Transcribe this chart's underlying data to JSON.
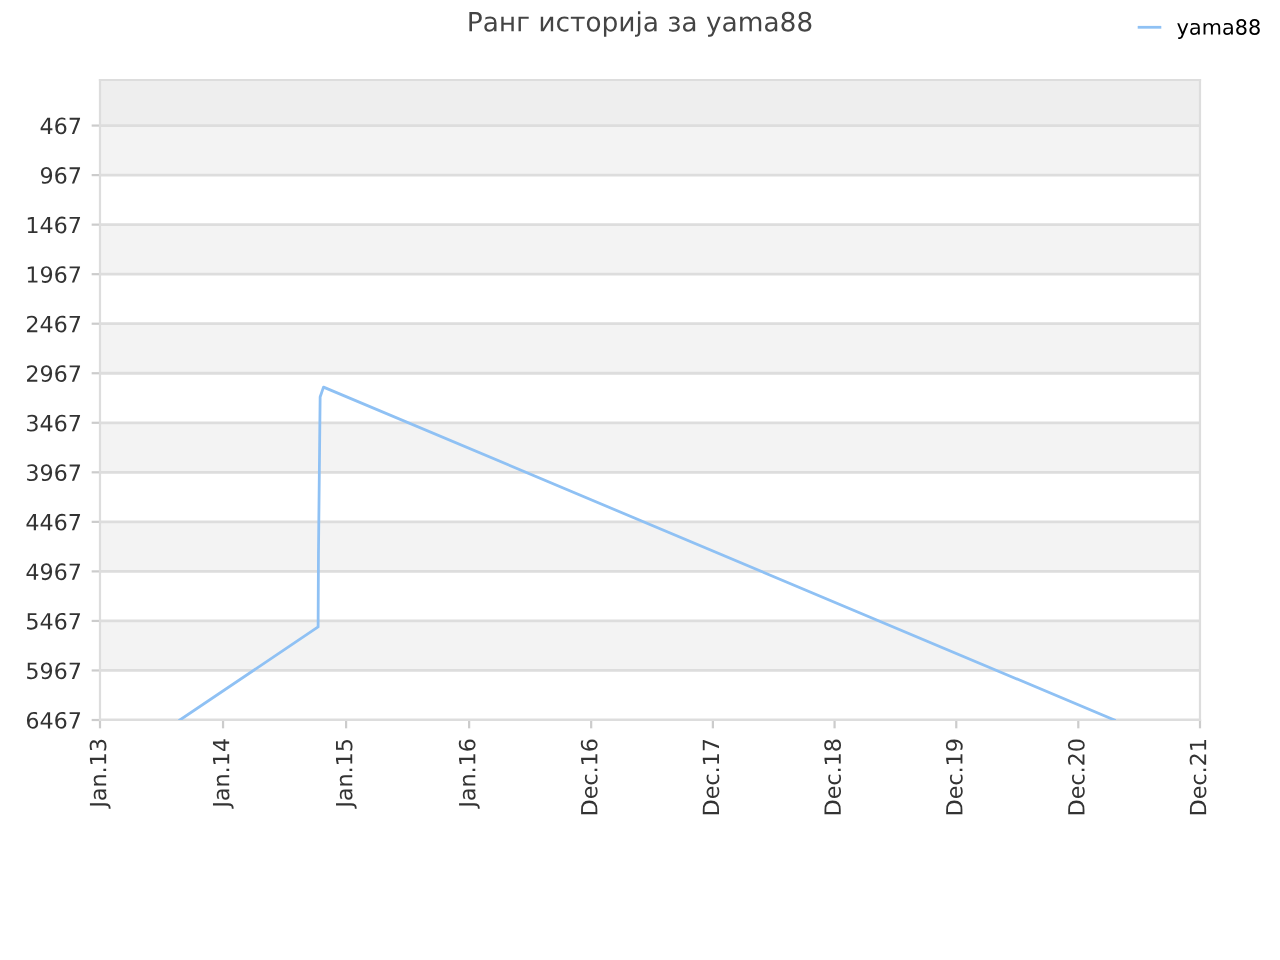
{
  "chart_data": {
    "type": "line",
    "title": "Ранг историја за yama88",
    "series": [
      {
        "name": "yama88",
        "color": "#8fc1f4",
        "x": [
          "2013-08-26",
          "2014-10-10",
          "2014-10-11",
          "2014-10-16",
          "2014-10-26",
          "2021-03-29"
        ],
        "values": [
          6467,
          5527,
          4807,
          3207,
          3107,
          6467
        ]
      }
    ],
    "xlim": [
      "2013-01-01",
      "2021-12-08"
    ],
    "xticks": [
      {
        "value": "2013-01-01",
        "label": "Jan.13"
      },
      {
        "value": "2014-01-01",
        "label": "Jan.14"
      },
      {
        "value": "2015-01-01",
        "label": "Jan.15"
      },
      {
        "value": "2016-01-01",
        "label": "Jan.16"
      },
      {
        "value": "2016-12-28",
        "label": "Dec.16"
      },
      {
        "value": "2017-12-24",
        "label": "Dec.17"
      },
      {
        "value": "2018-12-20",
        "label": "Dec.18"
      },
      {
        "value": "2019-12-16",
        "label": "Dec.19"
      },
      {
        "value": "2020-12-12",
        "label": "Dec.20"
      },
      {
        "value": "2021-12-08",
        "label": "Dec.21"
      }
    ],
    "ylim": [
      6467,
      7
    ],
    "yticks": [
      467,
      967,
      1467,
      1967,
      2467,
      2967,
      3467,
      3967,
      4467,
      4967,
      5467,
      5967,
      6467
    ],
    "bands": [
      {
        "axis": "y",
        "from": 467,
        "to": 7,
        "color": "#eeeeee"
      },
      {
        "axis": "y",
        "from": 967,
        "to": 467,
        "color": "#f3f3f3"
      },
      {
        "axis": "y",
        "from": 1967,
        "to": 1467,
        "color": "#f3f3f3"
      },
      {
        "axis": "y",
        "from": 2967,
        "to": 2467,
        "color": "#f3f3f3"
      },
      {
        "axis": "y",
        "from": 3967,
        "to": 3467,
        "color": "#f3f3f3"
      },
      {
        "axis": "y",
        "from": 4967,
        "to": 4467,
        "color": "#f3f3f3"
      },
      {
        "axis": "y",
        "from": 5967,
        "to": 5467,
        "color": "#f3f3f3"
      }
    ],
    "grid": "y",
    "legend": "top right",
    "marker": "none",
    "line_style": "solid"
  }
}
